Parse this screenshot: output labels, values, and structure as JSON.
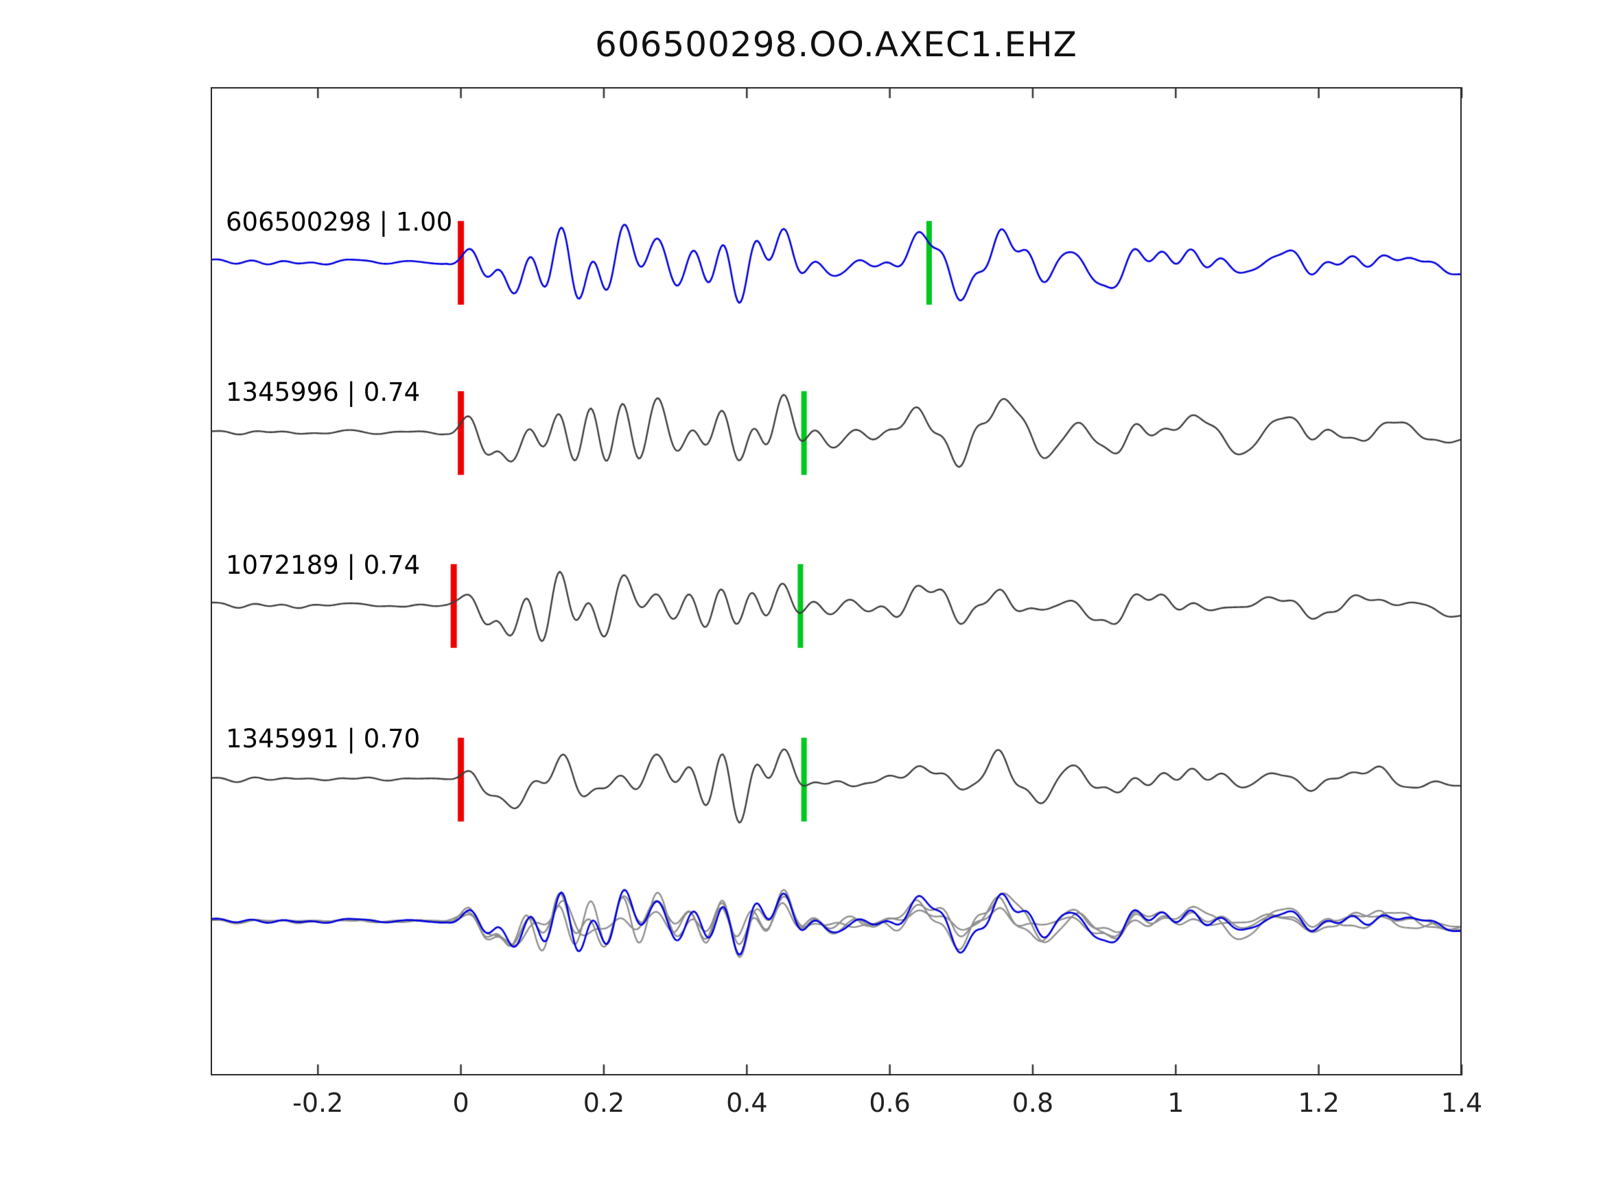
{
  "title": "606500298.OO.AXEC1.EHZ",
  "chart_data": {
    "type": "line",
    "title": "606500298.OO.AXEC1.EHZ",
    "subtitle": "",
    "xlabel": "",
    "ylabel": "",
    "xlim": [
      -0.35,
      1.4
    ],
    "x_ticks": [
      -0.2,
      0,
      0.2,
      0.4,
      0.6,
      0.8,
      1,
      1.2,
      1.4
    ],
    "x_tick_labels": [
      "-0.2",
      "0",
      "0.2",
      "0.4",
      "0.6",
      "0.8",
      "1",
      "1.2",
      "1.4"
    ],
    "grid": false,
    "legend": "none",
    "colors": {
      "reference_trace": "#0000e0",
      "template_trace": "#3d3d3d",
      "overlay_template": "#8f8f8f",
      "pick_primary": "#ee0000",
      "pick_secondary": "#00c81e",
      "axis": "#333333",
      "text": "#111111",
      "background": "#ffffff"
    },
    "traces": [
      {
        "id": "606500298",
        "correlation": "1.00",
        "label": "606500298 | 1.00",
        "role": "reference",
        "pick_red_x": 0.0,
        "pick_green_x": 0.655
      },
      {
        "id": "1345996",
        "correlation": "0.74",
        "label": "1345996 | 0.74",
        "role": "template",
        "pick_red_x": 0.0,
        "pick_green_x": 0.48
      },
      {
        "id": "1072189",
        "correlation": "0.74",
        "label": "1072189 | 0.74",
        "role": "template",
        "pick_red_x": -0.01,
        "pick_green_x": 0.475
      },
      {
        "id": "1345991",
        "correlation": "0.70",
        "label": "1345991 | 0.70",
        "role": "template",
        "pick_red_x": 0.0,
        "pick_green_x": 0.48
      }
    ],
    "overlay": {
      "description": "all four traces overlaid on common baseline",
      "includes": [
        "606500298",
        "1345996",
        "1072189",
        "1345991"
      ]
    },
    "waveform": {
      "note": "seismogram traces; sample values not labeled in image, regenerated procedurally",
      "pre_pick_noise_level": 0.13,
      "onset_x": 0.0,
      "max_burst_x": 0.75,
      "coda_end_x": 1.4
    }
  }
}
